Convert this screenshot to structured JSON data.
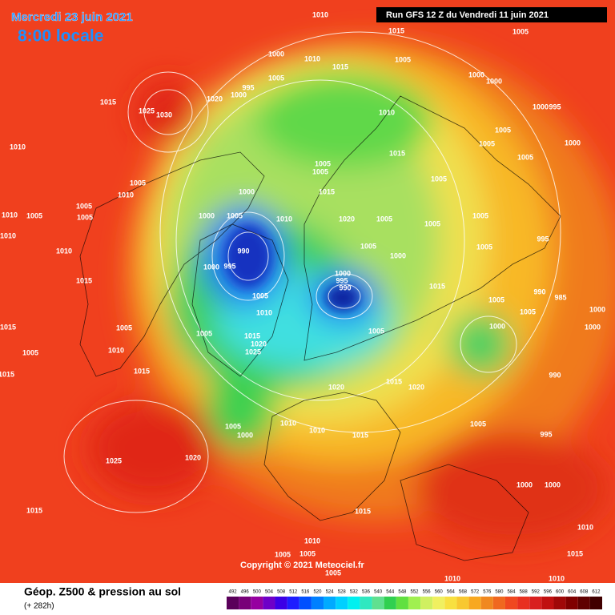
{
  "header": {
    "date": "Mercredi 23 juin 2021",
    "time": "8:00 locale",
    "run": "Run GFS 12 Z du Vendredi 11 juin 2021"
  },
  "footer": {
    "title": "Géop. Z500 & pression au sol",
    "lead": "(+ 282h)",
    "copyright": "Copyright © 2021 Meteociel.fr"
  },
  "legend": {
    "values": [
      492,
      496,
      500,
      504,
      508,
      512,
      516,
      520,
      524,
      528,
      532,
      536,
      540,
      544,
      548,
      552,
      556,
      560,
      564,
      568,
      572,
      576,
      580,
      584,
      588,
      592,
      596,
      600,
      604,
      608,
      612
    ],
    "colors": [
      "#5a005a",
      "#780078",
      "#9600a0",
      "#6e00c8",
      "#3c00e6",
      "#1e1eff",
      "#0050ff",
      "#0080ff",
      "#00aaff",
      "#00d0ff",
      "#00f0f0",
      "#30e8c0",
      "#60e090",
      "#30d050",
      "#60e040",
      "#a0f050",
      "#d0f060",
      "#f0f060",
      "#f8e040",
      "#f8c830",
      "#f8a820",
      "#f08820",
      "#f06820",
      "#f04820",
      "#e83020",
      "#d82020",
      "#c01010",
      "#a00808",
      "#800000",
      "#600000",
      "#400000"
    ]
  },
  "isobar_labels": [
    "1010",
    "1015",
    "1005",
    "1000",
    "1010",
    "1015",
    "1005",
    "1005",
    "1000",
    "1000",
    "995",
    "1000",
    "1020",
    "1015",
    "1025",
    "1030",
    "1010",
    "1000",
    "995",
    "1005",
    "1005",
    "1000",
    "1010",
    "1015",
    "1005",
    "1005",
    "1005",
    "1005",
    "1005",
    "1010",
    "1000",
    "1015",
    "1005",
    "1010",
    "1005",
    "1005",
    "1000",
    "1005",
    "1010",
    "1020",
    "1005",
    "1005",
    "1005",
    "995",
    "1010",
    "1010",
    "1005",
    "1000",
    "1005",
    "990",
    "1000",
    "995",
    "1000",
    "995",
    "990",
    "1015",
    "1015",
    "990",
    "985",
    "1005",
    "1005",
    "1005",
    "1000",
    "1010",
    "1015",
    "1005",
    "1005",
    "1015",
    "1000",
    "1000",
    "1005",
    "1020",
    "1025",
    "1010",
    "1005",
    "1015",
    "1015",
    "1015",
    "990",
    "1020",
    "1020",
    "1005",
    "1000",
    "1010",
    "1010",
    "1015",
    "1005",
    "995",
    "1025",
    "1020",
    "1000",
    "1000",
    "1015",
    "1015",
    "1010",
    "1010",
    "1005",
    "1005",
    "1005",
    "1015",
    "1010",
    "1010"
  ]
}
